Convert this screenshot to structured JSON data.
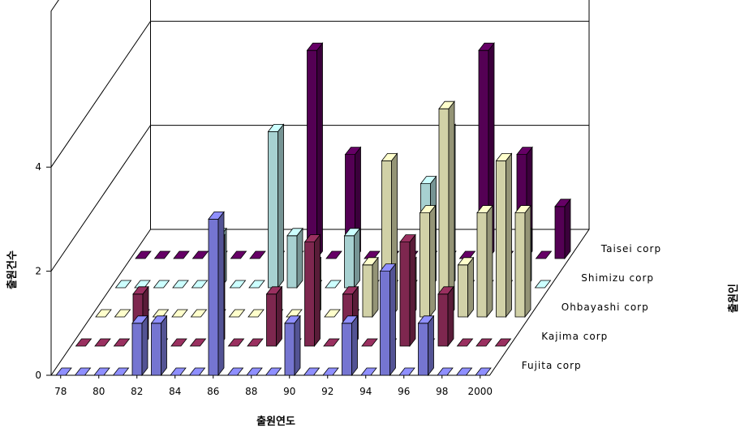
{
  "chart_data": {
    "type": "bar",
    "subtype": "3d-bar",
    "title": "",
    "xlabel": "출원연도",
    "ylabel": "출원건수",
    "zlabel": "출원인",
    "ylim": [
      0,
      4
    ],
    "yticks": [
      "0",
      "2",
      "4"
    ],
    "x": [
      "78",
      "79",
      "80",
      "81",
      "82",
      "83",
      "84",
      "85",
      "86",
      "87",
      "88",
      "89",
      "90",
      "91",
      "92",
      "93",
      "94",
      "95",
      "96",
      "97",
      "98",
      "99",
      "2000"
    ],
    "xtick_labels": [
      "78",
      "80",
      "82",
      "84",
      "86",
      "88",
      "90",
      "92",
      "94",
      "96",
      "98",
      "2000"
    ],
    "grid": true,
    "series": [
      {
        "name": "Fujita corp",
        "color": "#8f8fff",
        "values": [
          0,
          0,
          0,
          0,
          1,
          1,
          0,
          0,
          3,
          0,
          0,
          0,
          1,
          0,
          0,
          1,
          0,
          2,
          0,
          1,
          0,
          0,
          0
        ]
      },
      {
        "name": "Kajima corp",
        "color": "#9a3060",
        "values": [
          0,
          0,
          0,
          1,
          0,
          0,
          0,
          2,
          0,
          0,
          1,
          0,
          2,
          0,
          1,
          0,
          0,
          2,
          0,
          1,
          0,
          0,
          0
        ]
      },
      {
        "name": "Ohbayashi corp",
        "color": "#ffffcc",
        "values": [
          0,
          0,
          0,
          0,
          0,
          0,
          0,
          0,
          0,
          0,
          0,
          1,
          0,
          0,
          1,
          3,
          1,
          2,
          4,
          1,
          2,
          3,
          2
        ]
      },
      {
        "name": "Shimizu corp",
        "color": "#ccffff",
        "values": [
          0,
          0,
          0,
          0,
          0,
          1,
          0,
          0,
          3,
          1,
          0,
          0,
          1,
          0,
          0,
          0,
          2,
          3,
          0,
          0,
          0,
          1,
          0
        ]
      },
      {
        "name": "Taisei corp",
        "color": "#660066",
        "values": [
          0,
          0,
          0,
          0,
          0,
          0,
          0,
          0,
          0,
          4,
          0,
          2,
          0,
          0,
          0,
          0,
          0,
          0,
          4,
          0,
          2,
          0,
          1
        ]
      }
    ]
  }
}
